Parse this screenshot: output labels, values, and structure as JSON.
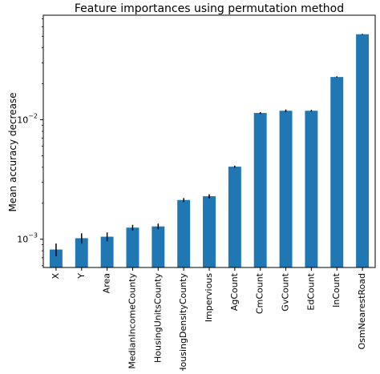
{
  "chart_data": {
    "type": "bar",
    "title": "Feature importances using permutation method",
    "xlabel": "",
    "ylabel": "Mean accuracy decrease",
    "y_scale": "log",
    "ylim": [
      0.00058,
      0.075
    ],
    "grid": false,
    "legend": "none",
    "bar_color": "#1f77b4",
    "error_color": "#000000",
    "categories": [
      "X",
      "Y",
      "Area",
      "MedianIncomeCounty",
      "HousingUnitsCounty",
      "HousingDensityCounty",
      "Impervious",
      "AgCount",
      "CmCount",
      "GvCount",
      "EdCount",
      "InCount",
      "OsmNearestRoad"
    ],
    "values": [
      0.00082,
      0.00102,
      0.00105,
      0.00125,
      0.00128,
      0.00213,
      0.00229,
      0.00405,
      0.0114,
      0.0119,
      0.0119,
      0.0228,
      0.052
    ],
    "errors": [
      0.0001,
      0.0001,
      9e-05,
      7e-05,
      7e-05,
      8e-05,
      9e-05,
      8e-05,
      0.0002,
      0.0003,
      0.0002,
      0.0003,
      0.0004
    ],
    "y_ticks": [
      {
        "value": 0.001,
        "base": "10",
        "exp": "−3"
      },
      {
        "value": 0.01,
        "base": "10",
        "exp": "−2"
      }
    ]
  }
}
